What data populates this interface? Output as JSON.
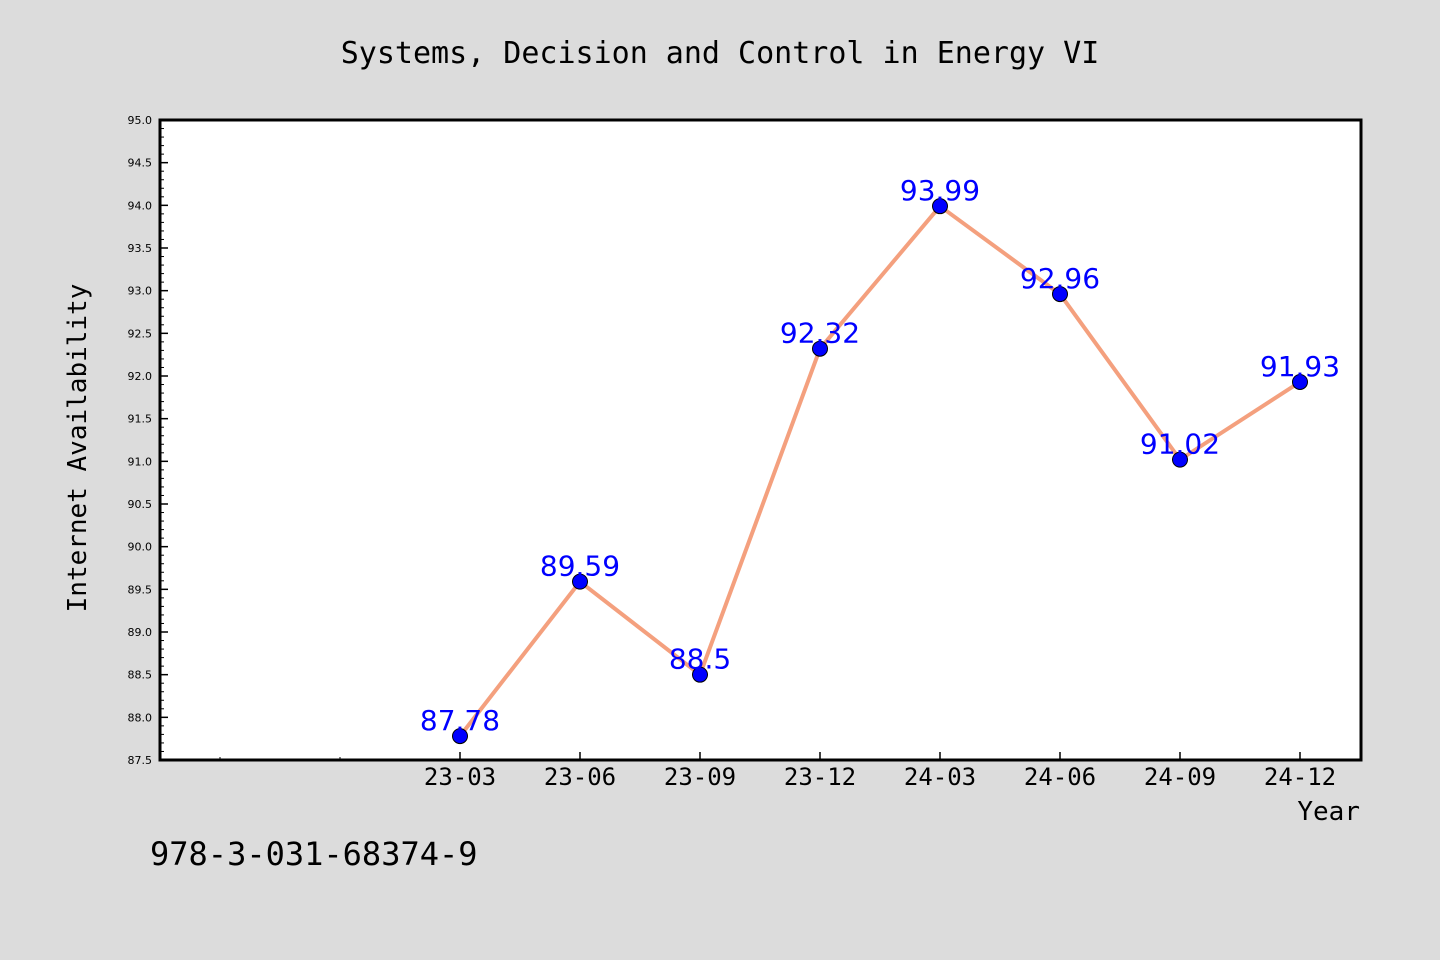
{
  "chart_data": {
    "type": "line",
    "title": "Systems, Decision and Control in Energy VI",
    "xlabel": "Year",
    "ylabel": "Internet Availability",
    "categories": [
      "23-03",
      "23-06",
      "23-09",
      "23-12",
      "24-03",
      "24-06",
      "24-09",
      "24-12"
    ],
    "series": [
      {
        "values": [
          87.78,
          89.59,
          88.5,
          92.32,
          93.99,
          92.96,
          91.02,
          91.93
        ],
        "data_labels": [
          "87.78",
          "89.59",
          "88.5",
          "92.32",
          "93.99",
          "92.96",
          "91.02",
          "91.93"
        ]
      }
    ],
    "ylim": [
      87.5,
      95.0
    ],
    "y_ticks": [
      "87.5",
      "88.0",
      "88.5",
      "89.0",
      "89.5",
      "90.0",
      "90.5",
      "91.0",
      "91.5",
      "92.0",
      "92.5",
      "93.0",
      "93.5",
      "94.0",
      "94.5",
      "95.0"
    ],
    "grid": false,
    "colors": {
      "line": "#f4a07e",
      "marker": "#0000ff",
      "label": "#0000ff",
      "plot_bg": "#ffffff",
      "page_bg": "#dcdcdc"
    }
  },
  "footer": {
    "isbn": "978-3-031-68374-9"
  }
}
